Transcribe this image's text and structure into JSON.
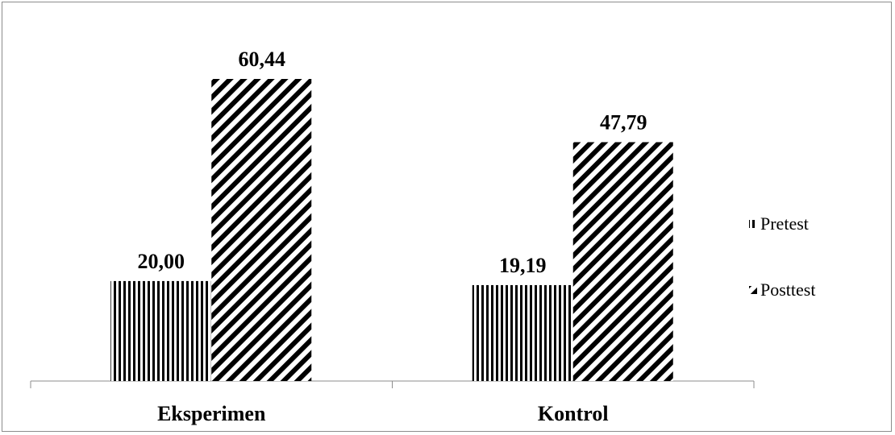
{
  "chart_data": {
    "type": "bar",
    "title": "",
    "xlabel": "",
    "ylabel": "",
    "categories": [
      "Eksperimen",
      "Kontrol"
    ],
    "series": [
      {
        "name": "Pretest",
        "values": [
          20.0,
          19.19
        ],
        "labels": [
          "20,00",
          "19,19"
        ],
        "pattern": "vertical-stripes"
      },
      {
        "name": "Posttest",
        "values": [
          60.44,
          47.79
        ],
        "labels": [
          "60,44",
          "47,79"
        ],
        "pattern": "diagonal-stripes"
      }
    ],
    "ylim": [
      0,
      70
    ],
    "grid": false,
    "legend_position": "right",
    "colors": {
      "bar": "#000000",
      "background": "#ffffff",
      "axis": "#8c8c8c"
    }
  }
}
